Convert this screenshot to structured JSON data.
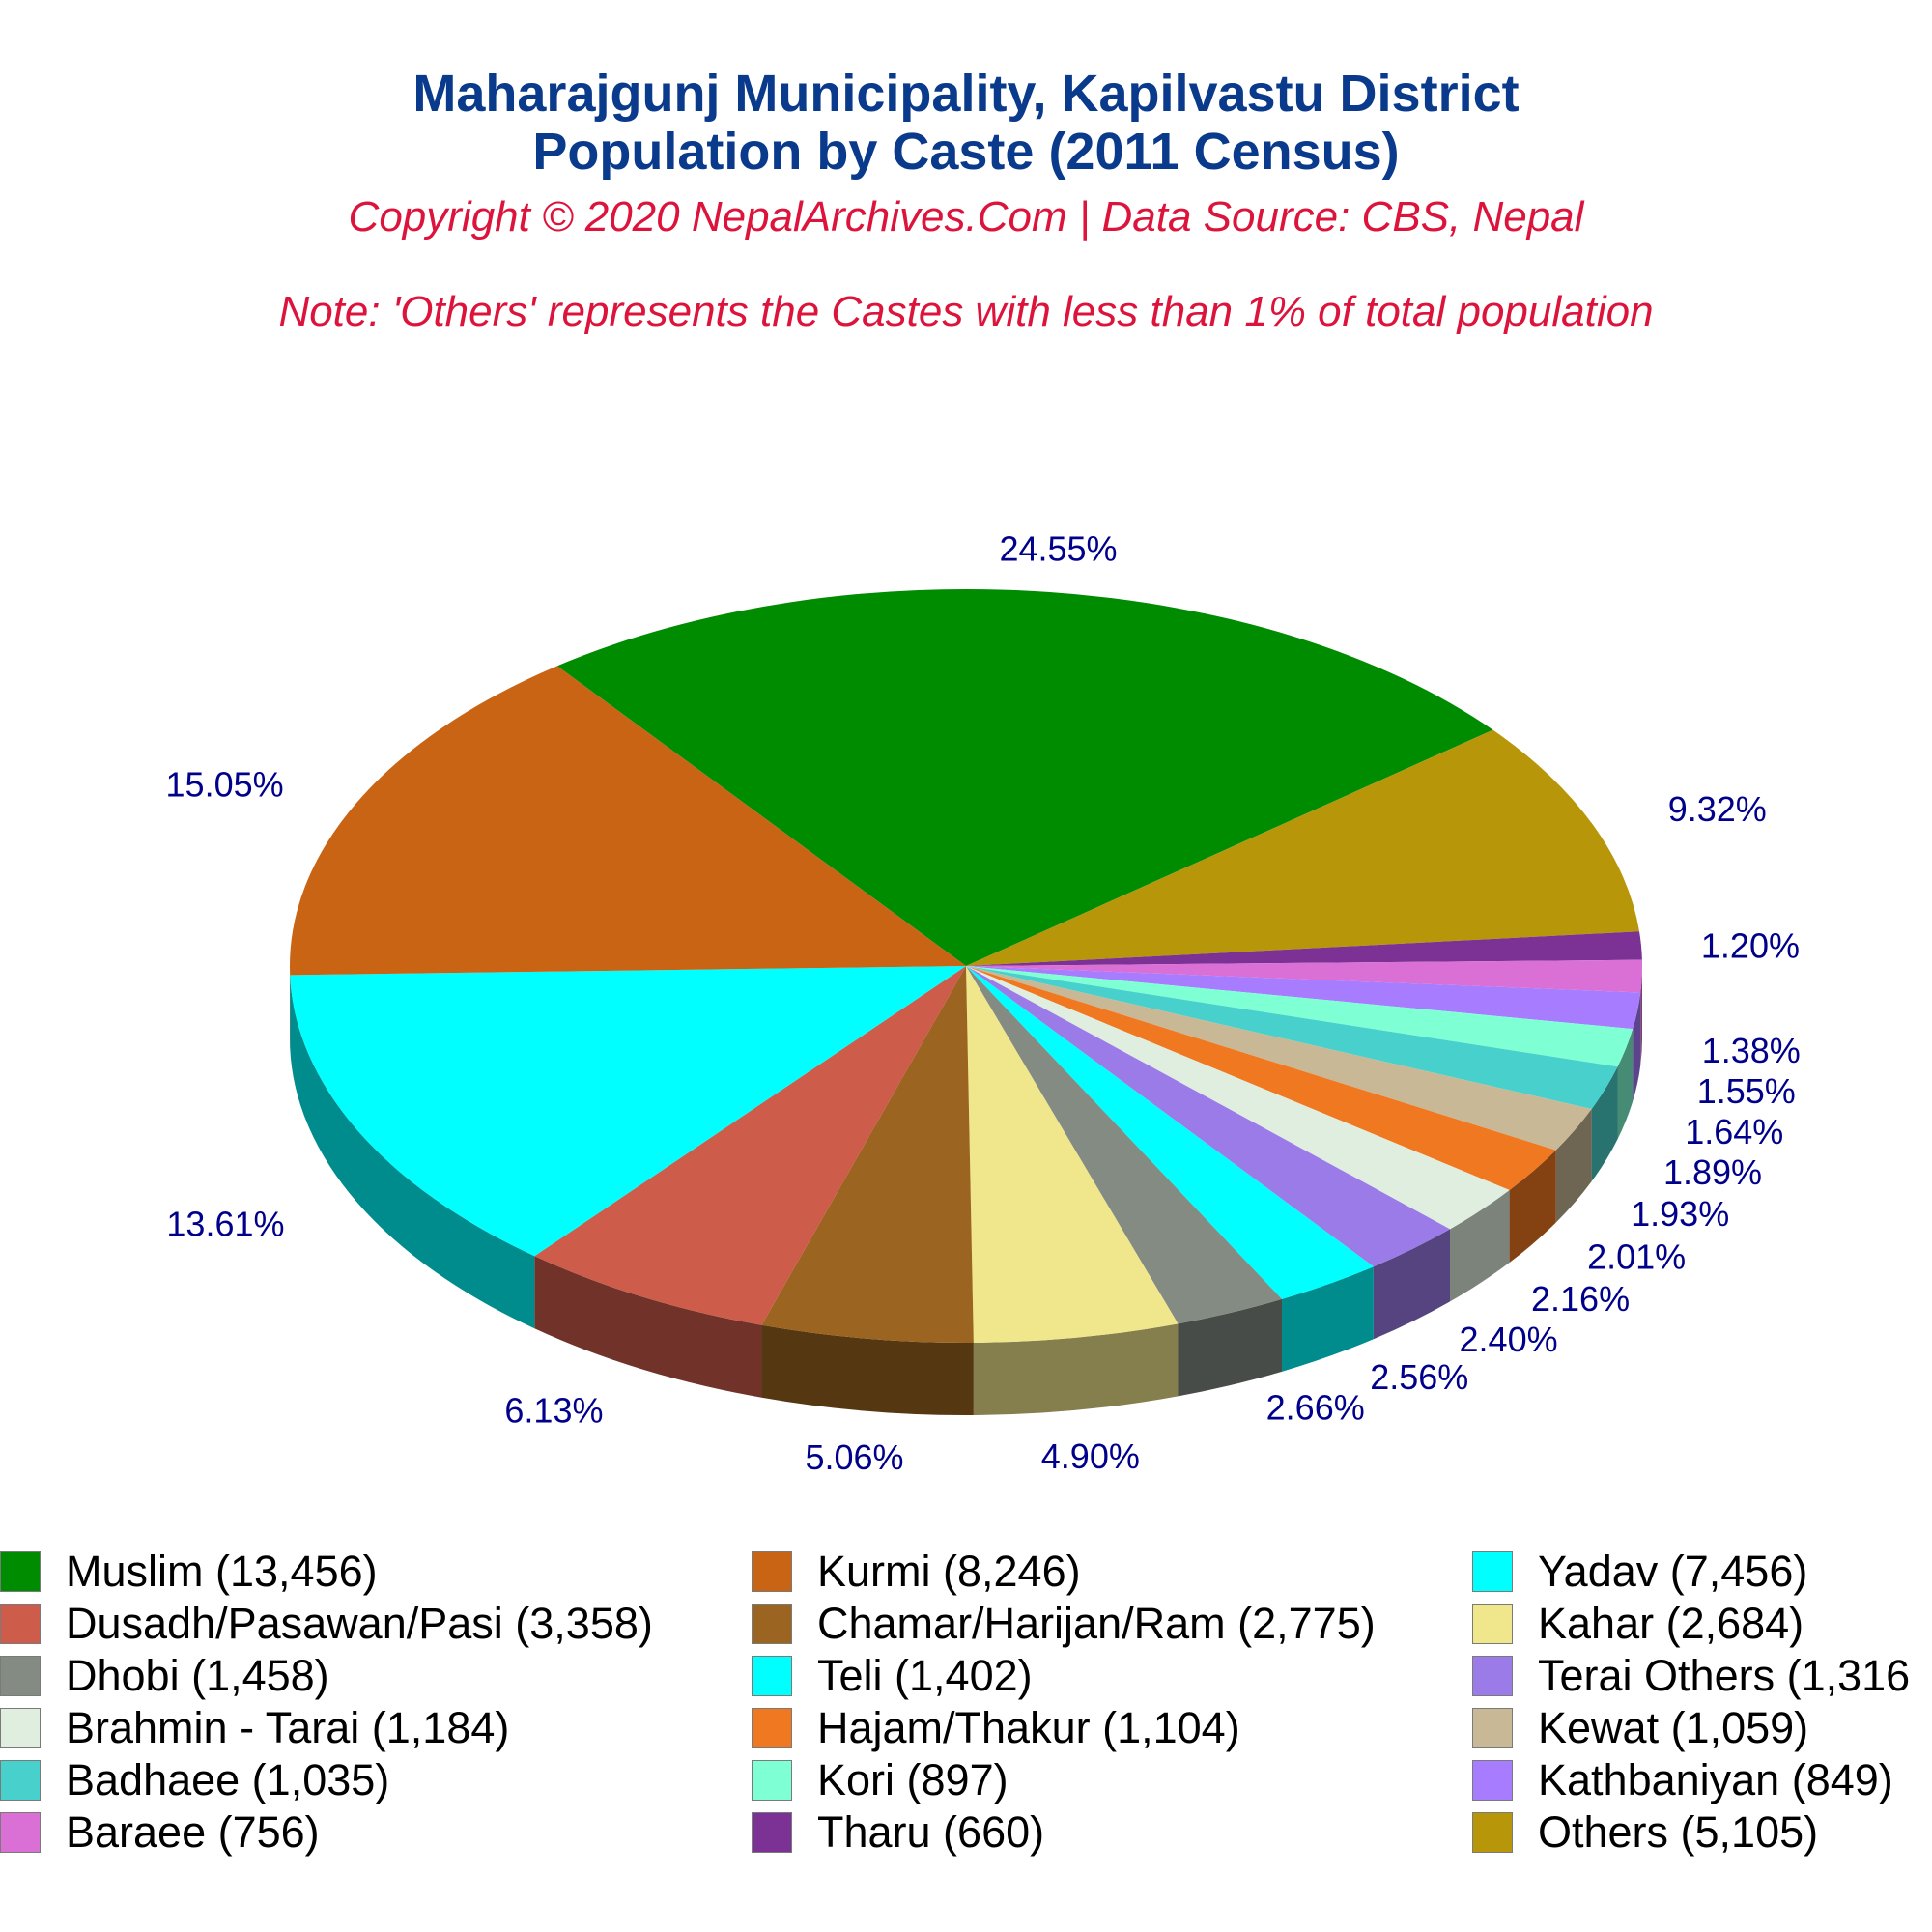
{
  "title_line1": "Maharajgunj Municipality, Kapilvastu District",
  "title_line2": "Population by Caste (2011 Census)",
  "copyright": "Copyright © 2020 NepalArchives.Com | Data Source: CBS, Nepal",
  "note": "Note: 'Others' represents the Castes with less than 1% of total population",
  "chart_data": {
    "type": "pie",
    "title": "Maharajgunj Municipality, Kapilvastu District Population by Caste (2011 Census)",
    "slices": [
      {
        "label": "Muslim",
        "value": 13456,
        "percent": "24.55%",
        "color": "#008c00"
      },
      {
        "label": "Others",
        "value": 5105,
        "percent": "9.32%",
        "color": "#b8960a"
      },
      {
        "label": "Tharu",
        "value": 660,
        "percent": "1.20%",
        "color": "#7b3294"
      },
      {
        "label": "Baraee",
        "value": 756,
        "percent": "1.38%",
        "color": "#da70d6"
      },
      {
        "label": "Kathbaniyan",
        "value": 849,
        "percent": "1.55%",
        "color": "#a77cff"
      },
      {
        "label": "Kori",
        "value": 897,
        "percent": "1.64%",
        "color": "#7fffd4"
      },
      {
        "label": "Badhaee",
        "value": 1035,
        "percent": "1.89%",
        "color": "#48d1cc"
      },
      {
        "label": "Kewat",
        "value": 1059,
        "percent": "1.93%",
        "color": "#c8b896"
      },
      {
        "label": "Hajam/Thakur",
        "value": 1104,
        "percent": "2.01%",
        "color": "#f07820"
      },
      {
        "label": "Brahmin - Tarai",
        "value": 1184,
        "percent": "2.16%",
        "color": "#e0eee0"
      },
      {
        "label": "Terai Others",
        "value": 1316,
        "percent": "2.40%",
        "color": "#9b7be8"
      },
      {
        "label": "Teli",
        "value": 1402,
        "percent": "2.56%",
        "color": "#00ffff"
      },
      {
        "label": "Dhobi",
        "value": 1458,
        "percent": "2.66%",
        "color": "#838b83"
      },
      {
        "label": "Kahar",
        "value": 2684,
        "percent": "4.90%",
        "color": "#f0e68c"
      },
      {
        "label": "Chamar/Harijan/Ram",
        "value": 2775,
        "percent": "5.06%",
        "color": "#9b6420"
      },
      {
        "label": "Dusadh/Pasawan/Pasi",
        "value": 3358,
        "percent": "6.13%",
        "color": "#cd5c4a"
      },
      {
        "label": "Yadav",
        "value": 7456,
        "percent": "13.61%",
        "color": "#00ffff"
      },
      {
        "label": "Kurmi",
        "value": 8246,
        "percent": "15.05%",
        "color": "#c86414"
      }
    ],
    "legend": [
      {
        "text": "Muslim (13,456)",
        "color": "#008c00"
      },
      {
        "text": "Kurmi (8,246)",
        "color": "#c86414"
      },
      {
        "text": "Yadav (7,456)",
        "color": "#00ffff"
      },
      {
        "text": "Dusadh/Pasawan/Pasi (3,358)",
        "color": "#cd5c4a"
      },
      {
        "text": "Chamar/Harijan/Ram (2,775)",
        "color": "#9b6420"
      },
      {
        "text": "Kahar (2,684)",
        "color": "#f0e68c"
      },
      {
        "text": "Dhobi (1,458)",
        "color": "#838b83"
      },
      {
        "text": "Teli (1,402)",
        "color": "#00ffff"
      },
      {
        "text": "Terai Others (1,316",
        "color": "#9b7be8"
      },
      {
        "text": "Brahmin - Tarai (1,184)",
        "color": "#e0eee0"
      },
      {
        "text": "Hajam/Thakur (1,104)",
        "color": "#f07820"
      },
      {
        "text": "Kewat (1,059)",
        "color": "#c8b896"
      },
      {
        "text": "Badhaee (1,035)",
        "color": "#48d1cc"
      },
      {
        "text": "Kori (897)",
        "color": "#7fffd4"
      },
      {
        "text": "Kathbaniyan (849)",
        "color": "#a77cff"
      },
      {
        "text": "Baraee (756)",
        "color": "#da70d6"
      },
      {
        "text": "Tharu (660)",
        "color": "#7b3294"
      },
      {
        "text": "Others (5,105)",
        "color": "#b8960a"
      }
    ],
    "legend_columns": 3,
    "label_color": "#00008b",
    "style": "3d-pie"
  }
}
